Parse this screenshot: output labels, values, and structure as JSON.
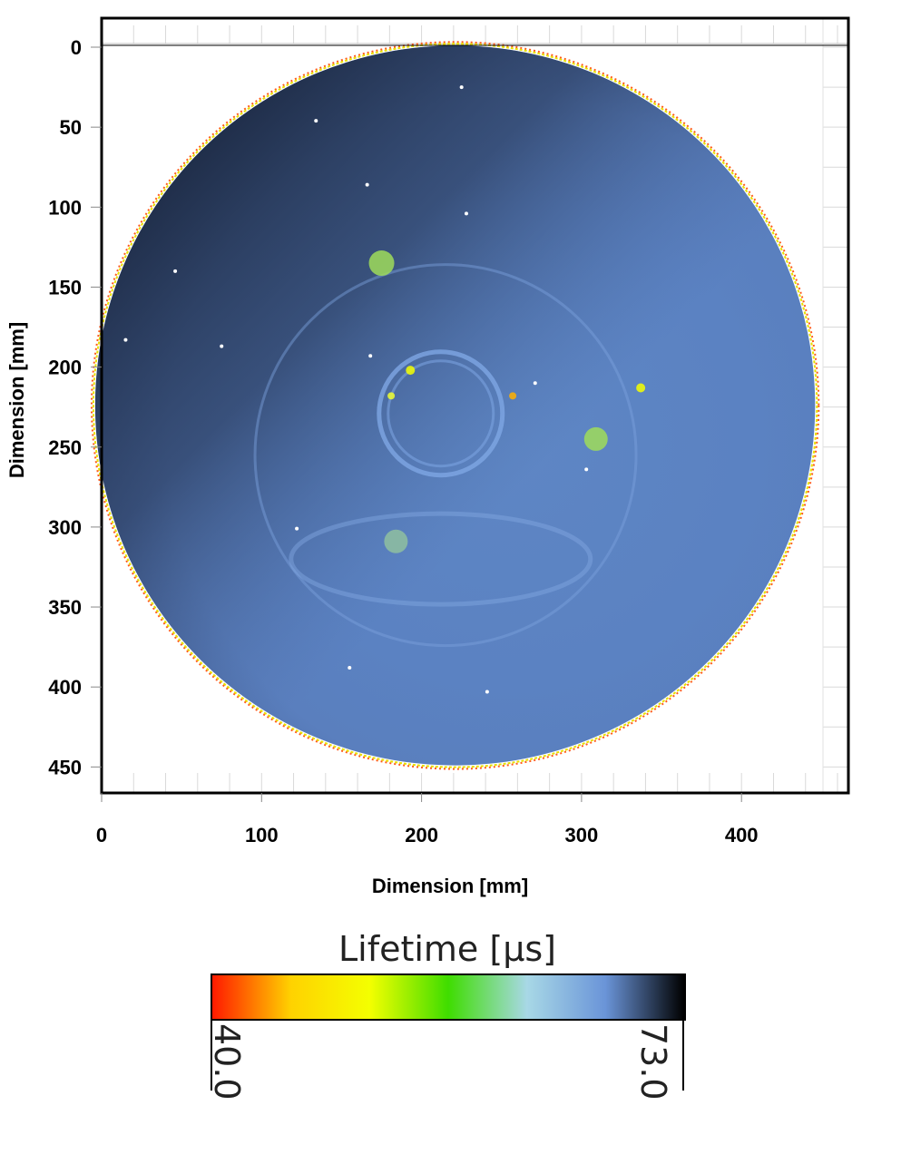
{
  "chart_data": {
    "type": "heatmap",
    "title": "",
    "xlabel": "Dimension [mm]",
    "ylabel": "Dimension [mm]",
    "xlim": [
      0,
      465
    ],
    "ylim": [
      0,
      465
    ],
    "y_inverted": true,
    "x_ticks": [
      "0",
      "100",
      "200",
      "300",
      "400"
    ],
    "x_tick_values": [
      0,
      100,
      200,
      300,
      400
    ],
    "y_ticks": [
      "0",
      "50",
      "100",
      "150",
      "200",
      "250",
      "300",
      "350",
      "400",
      "450"
    ],
    "y_tick_values": [
      0,
      50,
      100,
      150,
      200,
      250,
      300,
      350,
      400,
      450
    ],
    "grid": true,
    "wafer": {
      "center_x_mm": 221,
      "center_y_mm": 224,
      "radius_mm": 225
    },
    "colorbar": {
      "title": "Lifetime [µs]",
      "min": 40.0,
      "max": 73.0,
      "min_label": "40.0",
      "max_label": "73.0",
      "colors": [
        "#ff1a00",
        "#ffd200",
        "#f4ff00",
        "#3fdd00",
        "#a8d8e6",
        "#6a94d8",
        "#000000"
      ]
    }
  }
}
